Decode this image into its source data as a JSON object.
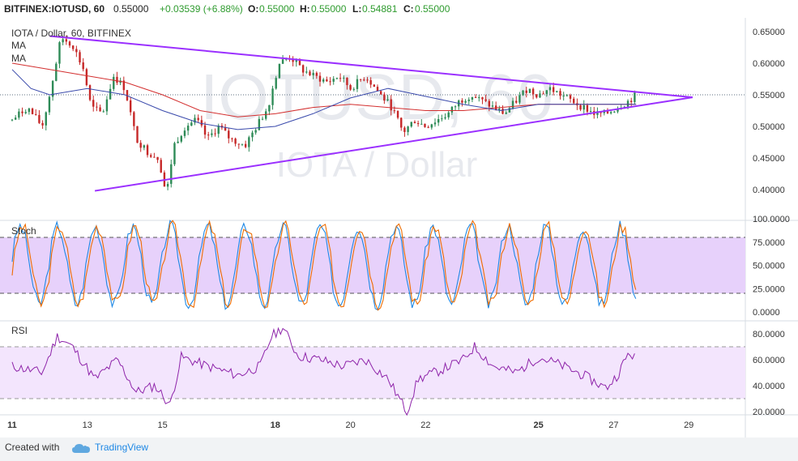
{
  "header": {
    "symbol": "BITFINEX:IOTUSD, 60",
    "price": "0.55000",
    "change": "+0.03539 (+6.88%)",
    "o_label": "O:",
    "o_value": "0.55000",
    "h_label": "H:",
    "h_value": "0.55000",
    "l_label": "L:",
    "l_value": "0.54881",
    "c_label": "C:",
    "c_value": "0.55000"
  },
  "legend": {
    "title": "IOTA / Dollar, 60, BITFINEX",
    "ma1": "MA",
    "ma2": "MA"
  },
  "watermark": {
    "line1": "IOTUSD, 60",
    "line2": "IOTA / Dollar"
  },
  "footer": {
    "created_with": "Created with",
    "brand": "TradingView"
  },
  "colors": {
    "up": "#2e8b57",
    "down": "#c62828",
    "ma_red": "#d32f2f",
    "ma_blue": "#3949ab",
    "trendline": "#9b30ff",
    "stoch_k": "#1e88e5",
    "stoch_d": "#ef6c00",
    "stoch_band": "#e7d1fb",
    "rsi_line": "#8e24aa",
    "rsi_band": "#f3e5fd"
  },
  "chart_data": [
    {
      "type": "candlestick",
      "title": "IOTA / Dollar, 60, BITFINEX",
      "x_ticks": [
        "11",
        "13",
        "15",
        "18",
        "20",
        "22",
        "25",
        "27",
        "29"
      ],
      "y_ticks": [
        "0.65000",
        "0.60000",
        "0.55000",
        "0.50000",
        "0.45000",
        "0.40000"
      ],
      "ylim": [
        0.37,
        0.66
      ],
      "last_price": 0.55,
      "price_path": [
        {
          "day": 11.0,
          "price": 0.51
        },
        {
          "day": 11.4,
          "price": 0.53
        },
        {
          "day": 11.8,
          "price": 0.5
        },
        {
          "day": 12.0,
          "price": 0.55
        },
        {
          "day": 12.3,
          "price": 0.64
        },
        {
          "day": 12.6,
          "price": 0.63
        },
        {
          "day": 12.9,
          "price": 0.59
        },
        {
          "day": 13.1,
          "price": 0.53
        },
        {
          "day": 13.4,
          "price": 0.52
        },
        {
          "day": 13.7,
          "price": 0.58
        },
        {
          "day": 14.0,
          "price": 0.56
        },
        {
          "day": 14.3,
          "price": 0.48
        },
        {
          "day": 14.6,
          "price": 0.46
        },
        {
          "day": 14.9,
          "price": 0.45
        },
        {
          "day": 15.1,
          "price": 0.39
        },
        {
          "day": 15.3,
          "price": 0.47
        },
        {
          "day": 15.6,
          "price": 0.5
        },
        {
          "day": 15.9,
          "price": 0.51
        },
        {
          "day": 16.2,
          "price": 0.48
        },
        {
          "day": 16.5,
          "price": 0.5
        },
        {
          "day": 16.8,
          "price": 0.48
        },
        {
          "day": 17.2,
          "price": 0.47
        },
        {
          "day": 17.5,
          "price": 0.5
        },
        {
          "day": 17.8,
          "price": 0.53
        },
        {
          "day": 18.1,
          "price": 0.6
        },
        {
          "day": 18.4,
          "price": 0.61
        },
        {
          "day": 18.7,
          "price": 0.59
        },
        {
          "day": 19.0,
          "price": 0.58
        },
        {
          "day": 19.4,
          "price": 0.57
        },
        {
          "day": 19.7,
          "price": 0.58
        },
        {
          "day": 20.0,
          "price": 0.56
        },
        {
          "day": 20.4,
          "price": 0.58
        },
        {
          "day": 20.8,
          "price": 0.55
        },
        {
          "day": 21.1,
          "price": 0.53
        },
        {
          "day": 21.4,
          "price": 0.49
        },
        {
          "day": 21.7,
          "price": 0.51
        },
        {
          "day": 22.0,
          "price": 0.5
        },
        {
          "day": 22.3,
          "price": 0.51
        },
        {
          "day": 22.6,
          "price": 0.52
        },
        {
          "day": 22.9,
          "price": 0.54
        },
        {
          "day": 23.2,
          "price": 0.55
        },
        {
          "day": 23.5,
          "price": 0.54
        },
        {
          "day": 23.8,
          "price": 0.53
        },
        {
          "day": 24.1,
          "price": 0.52
        },
        {
          "day": 24.4,
          "price": 0.54
        },
        {
          "day": 24.7,
          "price": 0.56
        },
        {
          "day": 25.0,
          "price": 0.55
        },
        {
          "day": 25.3,
          "price": 0.56
        },
        {
          "day": 25.6,
          "price": 0.55
        },
        {
          "day": 25.9,
          "price": 0.54
        },
        {
          "day": 26.2,
          "price": 0.53
        },
        {
          "day": 26.5,
          "price": 0.52
        },
        {
          "day": 26.8,
          "price": 0.52
        },
        {
          "day": 27.1,
          "price": 0.53
        },
        {
          "day": 27.4,
          "price": 0.54
        },
        {
          "day": 27.6,
          "price": 0.55
        }
      ],
      "ma_red": [
        {
          "day": 11.0,
          "price": 0.6
        },
        {
          "day": 12.0,
          "price": 0.59
        },
        {
          "day": 13.0,
          "price": 0.58
        },
        {
          "day": 14.0,
          "price": 0.57
        },
        {
          "day": 15.0,
          "price": 0.55
        },
        {
          "day": 16.0,
          "price": 0.525
        },
        {
          "day": 17.0,
          "price": 0.515
        },
        {
          "day": 18.0,
          "price": 0.52
        },
        {
          "day": 19.0,
          "price": 0.53
        },
        {
          "day": 20.0,
          "price": 0.535
        },
        {
          "day": 21.0,
          "price": 0.53
        },
        {
          "day": 22.0,
          "price": 0.525
        },
        {
          "day": 23.0,
          "price": 0.525
        },
        {
          "day": 24.0,
          "price": 0.53
        },
        {
          "day": 25.0,
          "price": 0.535
        },
        {
          "day": 26.0,
          "price": 0.535
        },
        {
          "day": 27.0,
          "price": 0.535
        },
        {
          "day": 27.6,
          "price": 0.535
        }
      ],
      "ma_blue": [
        {
          "day": 11.0,
          "price": 0.59
        },
        {
          "day": 11.5,
          "price": 0.56
        },
        {
          "day": 12.0,
          "price": 0.55
        },
        {
          "day": 13.0,
          "price": 0.56
        },
        {
          "day": 14.0,
          "price": 0.55
        },
        {
          "day": 15.0,
          "price": 0.525
        },
        {
          "day": 16.0,
          "price": 0.505
        },
        {
          "day": 17.0,
          "price": 0.495
        },
        {
          "day": 18.0,
          "price": 0.5
        },
        {
          "day": 19.0,
          "price": 0.52
        },
        {
          "day": 20.0,
          "price": 0.545
        },
        {
          "day": 21.0,
          "price": 0.56
        },
        {
          "day": 21.8,
          "price": 0.55
        },
        {
          "day": 23.0,
          "price": 0.535
        },
        {
          "day": 24.0,
          "price": 0.525
        },
        {
          "day": 25.0,
          "price": 0.535
        },
        {
          "day": 26.0,
          "price": 0.535
        },
        {
          "day": 27.0,
          "price": 0.535
        },
        {
          "day": 27.6,
          "price": 0.535
        }
      ],
      "trendlines": [
        {
          "from": {
            "day": 12.0,
            "price": 0.643
          },
          "to": {
            "day": 29.1,
            "price": 0.546
          }
        },
        {
          "from": {
            "day": 13.2,
            "price": 0.398
          },
          "to": {
            "day": 29.1,
            "price": 0.546
          }
        }
      ]
    },
    {
      "type": "line",
      "title": "Stoch",
      "y_ticks": [
        "100.0000",
        "75.0000",
        "50.0000",
        "25.0000",
        "0.0000"
      ],
      "ylim": [
        0,
        100
      ],
      "band": [
        20,
        80
      ],
      "series": [
        {
          "color_key": "stoch_k",
          "seed": 1
        },
        {
          "color_key": "stoch_d",
          "seed": 2
        }
      ]
    },
    {
      "type": "line",
      "title": "RSI",
      "y_ticks": [
        "80.0000",
        "60.0000",
        "40.0000",
        "20.0000"
      ],
      "ylim": [
        15,
        85
      ],
      "band": [
        30,
        70
      ],
      "rsi_path": [
        {
          "day": 11.0,
          "value": 55
        },
        {
          "day": 11.8,
          "value": 50
        },
        {
          "day": 12.2,
          "value": 78
        },
        {
          "day": 12.6,
          "value": 70
        },
        {
          "day": 13.2,
          "value": 45
        },
        {
          "day": 13.8,
          "value": 60
        },
        {
          "day": 14.3,
          "value": 35
        },
        {
          "day": 14.8,
          "value": 40
        },
        {
          "day": 15.2,
          "value": 25
        },
        {
          "day": 15.5,
          "value": 62
        },
        {
          "day": 16.2,
          "value": 55
        },
        {
          "day": 17.0,
          "value": 48
        },
        {
          "day": 17.6,
          "value": 55
        },
        {
          "day": 17.9,
          "value": 78
        },
        {
          "day": 18.2,
          "value": 85
        },
        {
          "day": 18.6,
          "value": 63
        },
        {
          "day": 19.2,
          "value": 60
        },
        {
          "day": 19.8,
          "value": 55
        },
        {
          "day": 20.4,
          "value": 60
        },
        {
          "day": 21.0,
          "value": 45
        },
        {
          "day": 21.5,
          "value": 20
        },
        {
          "day": 21.8,
          "value": 45
        },
        {
          "day": 22.4,
          "value": 52
        },
        {
          "day": 23.0,
          "value": 60
        },
        {
          "day": 23.3,
          "value": 70
        },
        {
          "day": 23.8,
          "value": 55
        },
        {
          "day": 24.4,
          "value": 50
        },
        {
          "day": 25.0,
          "value": 62
        },
        {
          "day": 25.5,
          "value": 57
        },
        {
          "day": 26.2,
          "value": 48
        },
        {
          "day": 26.8,
          "value": 38
        },
        {
          "day": 27.1,
          "value": 48
        },
        {
          "day": 27.4,
          "value": 65
        },
        {
          "day": 27.6,
          "value": 62
        }
      ]
    }
  ]
}
